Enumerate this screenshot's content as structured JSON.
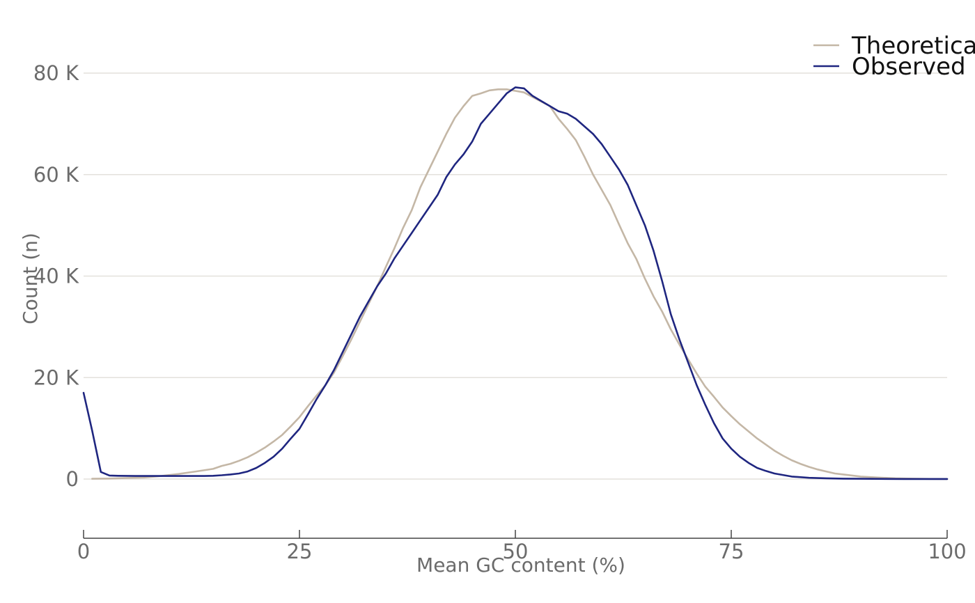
{
  "chart_data": {
    "type": "line",
    "title": "",
    "xlabel": "Mean GC content (%)",
    "ylabel": "Count (n)",
    "xlim": [
      0,
      100
    ],
    "ylim": [
      -10000,
      80000
    ],
    "x_ticks": [
      0,
      25,
      50,
      75,
      100
    ],
    "x_tick_labels": [
      "0",
      "25",
      "50",
      "75",
      "100"
    ],
    "y_ticks": [
      0,
      20000,
      40000,
      60000,
      80000
    ],
    "y_tick_labels": [
      "0",
      "20 K",
      "40 K",
      "60 K",
      "80 K"
    ],
    "grid": "horizontal",
    "legend_position": "top-right",
    "series": [
      {
        "name": "Theoretical",
        "color": "#c4b7a6",
        "x": [
          1,
          3,
          5,
          7,
          9,
          11,
          13,
          15,
          16,
          17,
          18,
          19,
          20,
          21,
          22,
          23,
          24,
          25,
          26,
          27,
          28,
          29,
          30,
          31,
          32,
          33,
          34,
          35,
          36,
          37,
          38,
          39,
          40,
          41,
          42,
          43,
          44,
          45,
          46,
          47,
          48,
          49,
          50,
          51,
          52,
          53,
          54,
          55,
          56,
          57,
          58,
          59,
          60,
          61,
          62,
          63,
          64,
          65,
          66,
          67,
          68,
          69,
          70,
          71,
          72,
          73,
          74,
          75,
          76,
          77,
          78,
          79,
          80,
          81,
          82,
          83,
          84,
          85,
          86,
          87,
          88,
          89,
          90,
          92,
          94,
          96,
          98,
          100
        ],
        "y": [
          50,
          100,
          200,
          300,
          600,
          1000,
          1500,
          2000,
          2600,
          3000,
          3600,
          4300,
          5200,
          6200,
          7400,
          8700,
          10400,
          12200,
          14400,
          16500,
          18500,
          21000,
          24200,
          27500,
          31000,
          34500,
          38000,
          41800,
          45500,
          49500,
          53000,
          57500,
          61000,
          64500,
          68000,
          71200,
          73500,
          75500,
          76000,
          76600,
          76800,
          76800,
          76500,
          76200,
          75300,
          74400,
          73500,
          71000,
          69000,
          66800,
          63500,
          60000,
          57000,
          54000,
          50200,
          46500,
          43400,
          39500,
          36000,
          33000,
          29500,
          26500,
          23600,
          20800,
          18200,
          16200,
          14100,
          12400,
          10800,
          9400,
          8000,
          6800,
          5600,
          4600,
          3700,
          3000,
          2400,
          1900,
          1500,
          1100,
          900,
          700,
          500,
          300,
          150,
          80,
          30,
          10
        ]
      },
      {
        "name": "Observed",
        "color": "#1f2680",
        "x": [
          0,
          1,
          2,
          3,
          4,
          6,
          8,
          10,
          12,
          14,
          15,
          16,
          17,
          18,
          19,
          20,
          21,
          22,
          23,
          24,
          25,
          26,
          27,
          28,
          29,
          30,
          31,
          32,
          33,
          34,
          35,
          36,
          37,
          38,
          39,
          40,
          41,
          42,
          43,
          44,
          45,
          46,
          47,
          48,
          49,
          50,
          51,
          52,
          53,
          54,
          55,
          56,
          57,
          58,
          59,
          60,
          61,
          62,
          63,
          64,
          65,
          66,
          67,
          68,
          69,
          70,
          71,
          72,
          73,
          74,
          75,
          76,
          77,
          78,
          79,
          80,
          82,
          84,
          86,
          88,
          90,
          95,
          100
        ],
        "y": [
          17000,
          9500,
          1400,
          700,
          650,
          600,
          600,
          600,
          600,
          600,
          650,
          750,
          900,
          1100,
          1500,
          2200,
          3200,
          4400,
          6000,
          8000,
          9900,
          12800,
          15800,
          18500,
          21500,
          25000,
          28500,
          32000,
          35000,
          38000,
          40500,
          43500,
          46000,
          48500,
          51000,
          53500,
          56000,
          59500,
          62000,
          64000,
          66500,
          70000,
          72000,
          74000,
          76000,
          77200,
          77000,
          75500,
          74500,
          73500,
          72500,
          72000,
          71000,
          69500,
          68000,
          66000,
          63500,
          61000,
          58000,
          54000,
          50000,
          45000,
          39000,
          32500,
          27500,
          23000,
          18500,
          14600,
          11000,
          8000,
          6000,
          4400,
          3200,
          2200,
          1600,
          1100,
          500,
          250,
          150,
          80,
          50,
          20,
          10
        ]
      }
    ]
  }
}
